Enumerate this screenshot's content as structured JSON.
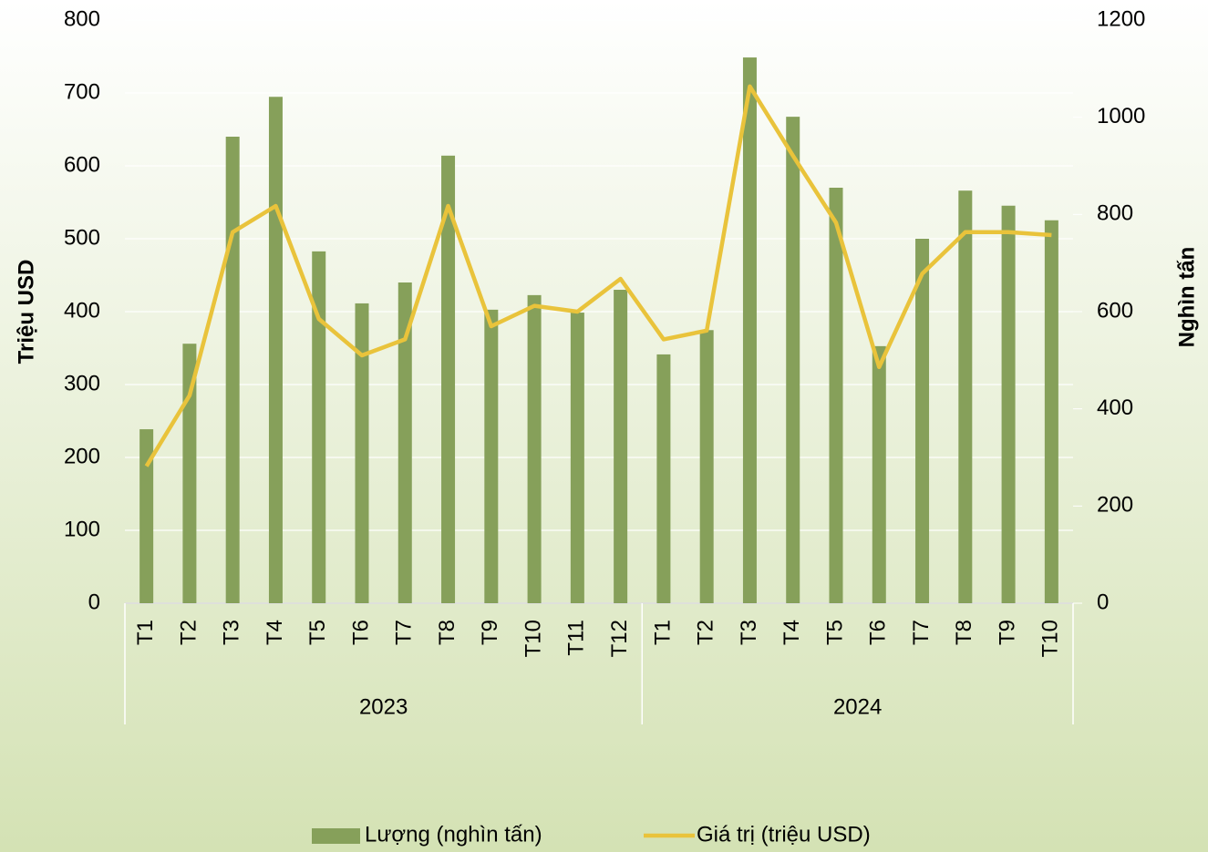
{
  "chart_data": {
    "type": "bar-line",
    "groups": [
      {
        "label": "2023",
        "months": [
          "T1",
          "T2",
          "T3",
          "T4",
          "T5",
          "T6",
          "T7",
          "T8",
          "T9",
          "T10",
          "T11",
          "T12"
        ]
      },
      {
        "label": "2024",
        "months": [
          "T1",
          "T2",
          "T3",
          "T4",
          "T5",
          "T6",
          "T7",
          "T8",
          "T9",
          "T10"
        ]
      }
    ],
    "series": [
      {
        "name": "Lượng (nghìn tấn)",
        "type": "bar",
        "axis": "y2",
        "color": "#86a05a",
        "values": [
          358,
          534,
          960,
          1042,
          724,
          617,
          660,
          921,
          604,
          634,
          598,
          645,
          512,
          562,
          1123,
          1001,
          855,
          529,
          750,
          849,
          818,
          788
        ]
      },
      {
        "name": "Giá trị (triệu USD)",
        "type": "line",
        "axis": "y",
        "color": "#e9c33b",
        "values": [
          188,
          285,
          509,
          545,
          390,
          340,
          362,
          545,
          380,
          408,
          400,
          445,
          362,
          374,
          709,
          614,
          522,
          324,
          452,
          509,
          509,
          505
        ]
      }
    ],
    "ylabel": "Triệu USD",
    "y2label": "Nghìn tấn",
    "ylim": [
      0,
      800
    ],
    "yticks": [
      0,
      100,
      200,
      300,
      400,
      500,
      600,
      700,
      800
    ],
    "y2lim": [
      0,
      1200
    ],
    "y2ticks": [
      0,
      200,
      400,
      600,
      800,
      1000,
      1200
    ],
    "grid": true,
    "legend": "bottom"
  }
}
